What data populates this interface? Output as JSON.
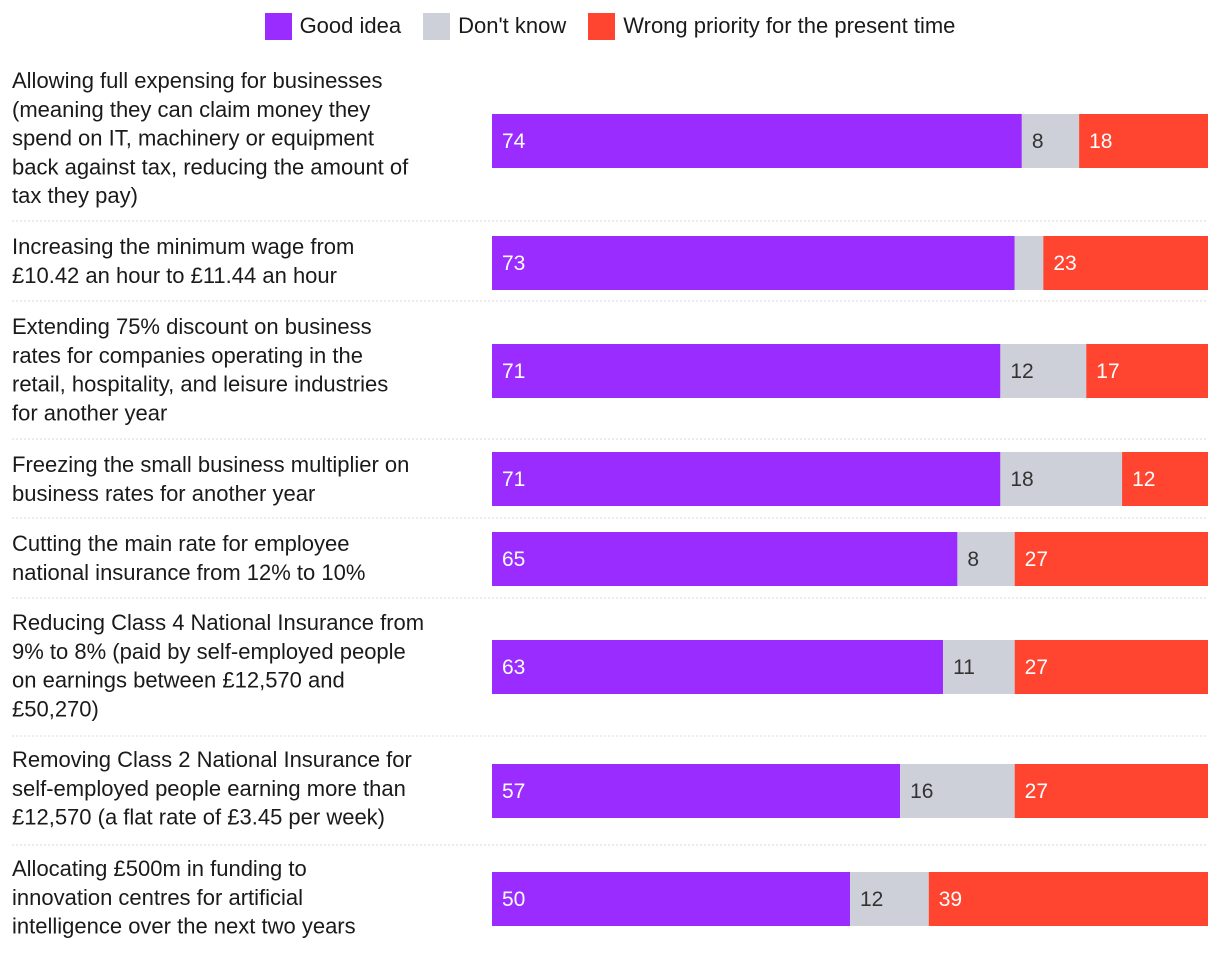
{
  "chart_data": {
    "type": "bar",
    "orientation": "horizontal",
    "stacked": true,
    "legend": [
      {
        "name": "Good idea",
        "color": "#9b2cff"
      },
      {
        "name": "Don't know",
        "color": "#cdd0d8"
      },
      {
        "name": "Wrong priority for the present time",
        "color": "#ff4430"
      }
    ],
    "categories": [
      [
        "Allowing full expensing for businesses",
        "(meaning they can claim money they",
        "spend on IT, machinery or equipment",
        "back against tax, reducing the amount of",
        "tax they pay)"
      ],
      [
        "Increasing the minimum wage from",
        "£10.42 an hour to £11.44 an hour"
      ],
      [
        "Extending 75% discount on business",
        "rates for companies operating in the",
        "retail, hospitality, and leisure industries",
        "for another year"
      ],
      [
        "Freezing the small business multiplier on",
        "business rates for another year"
      ],
      [
        "Cutting the main rate for employee",
        "national insurance from 12% to 10%"
      ],
      [
        "Reducing Class 4 National Insurance from",
        "9% to 8% (paid by self-employed people",
        "on earnings between £12,570 and",
        "£50,270)"
      ],
      [
        "Removing Class 2 National Insurance for",
        "self-employed people earning more than",
        "£12,570 (a flat rate of £3.45 per week)"
      ],
      [
        "Allocating £500m in funding to",
        "innovation centres for artificial",
        "intelligence over the next two years"
      ]
    ],
    "series": [
      {
        "name": "Good idea",
        "values": [
          74,
          73,
          71,
          71,
          65,
          63,
          57,
          50
        ]
      },
      {
        "name": "Don't know",
        "values": [
          8,
          null,
          12,
          18,
          8,
          11,
          16,
          12
        ]
      },
      {
        "name": "Wrong priority for the present time",
        "values": [
          18,
          23,
          17,
          12,
          27,
          27,
          27,
          39
        ]
      }
    ],
    "xlim": [
      0,
      100
    ]
  }
}
